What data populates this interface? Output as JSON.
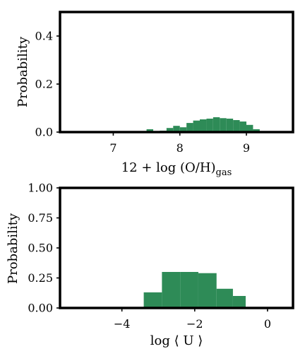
{
  "chart_data": [
    {
      "type": "bar",
      "xlabel": "12 + log (O/H)",
      "xlabel_subscript": "gas",
      "ylabel": "Probability",
      "xlim": [
        6.2,
        9.7
      ],
      "ylim": [
        0.0,
        0.5
      ],
      "xticks": [
        7,
        8,
        9
      ],
      "xtick_labels": [
        "7",
        "8",
        "9"
      ],
      "yticks": [
        0.0,
        0.2,
        0.4
      ],
      "ytick_labels": [
        "0.0",
        "0.2",
        "0.4"
      ],
      "bar_color": "#2e8b57",
      "bin_edges": [
        7.5,
        7.6,
        7.7,
        7.8,
        7.9,
        8.0,
        8.1,
        8.2,
        8.3,
        8.4,
        8.5,
        8.6,
        8.7,
        8.8,
        8.9,
        9.0,
        9.1,
        9.2
      ],
      "values": [
        0.012,
        0.0,
        0.006,
        0.017,
        0.026,
        0.02,
        0.038,
        0.048,
        0.053,
        0.056,
        0.062,
        0.058,
        0.056,
        0.05,
        0.044,
        0.03,
        0.012
      ]
    },
    {
      "type": "bar",
      "xlabel": "log ⟨ U ⟩",
      "ylabel": "Probability",
      "xlim": [
        -5.7,
        0.7
      ],
      "ylim": [
        0.0,
        1.0
      ],
      "xticks": [
        -4,
        -2,
        0
      ],
      "xtick_labels": [
        "−4",
        "−2",
        "0"
      ],
      "yticks": [
        0.0,
        0.25,
        0.5,
        0.75,
        1.0
      ],
      "ytick_labels": [
        "0.00",
        "0.25",
        "0.50",
        "0.75",
        "1.00"
      ],
      "bar_color": "#2e8b57",
      "bin_edges": [
        -3.4,
        -2.9,
        -2.4,
        -1.9,
        -1.4,
        -0.95,
        -0.6
      ],
      "values": [
        0.13,
        0.3,
        0.3,
        0.29,
        0.16,
        0.1
      ]
    }
  ]
}
